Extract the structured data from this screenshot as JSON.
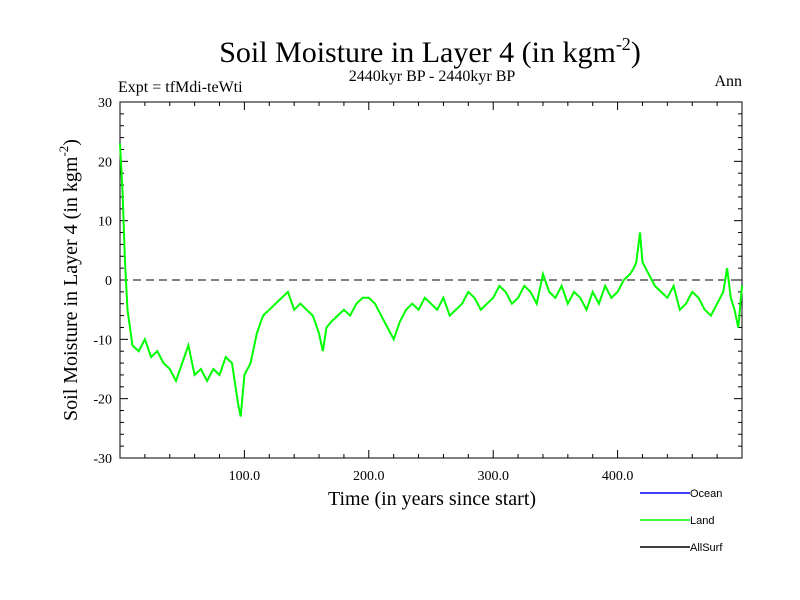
{
  "chart_data": {
    "type": "line",
    "title": "Soil Moisture in Layer 4 (in kgm",
    "title_sup": "-2",
    "title_close": ")",
    "subtitle_left": "Expt = tfMdi-teWti",
    "subtitle_center": "2440kyr BP - 2440kyr BP",
    "subtitle_right": "Ann",
    "xlabel": "Time (in years since start)",
    "ylabel": "Soil Moisture in Layer 4 (in kgm",
    "ylabel_sup": "-2",
    "ylabel_close": ")",
    "xlim": [
      0,
      500
    ],
    "ylim": [
      -30,
      30
    ],
    "xticks": [
      100,
      200,
      300,
      400
    ],
    "xtick_labels": [
      "100.0",
      "200.0",
      "300.0",
      "400.0"
    ],
    "yticks": [
      -30,
      -20,
      -10,
      0,
      10,
      20,
      30
    ],
    "ytick_labels": [
      "-30",
      "-20",
      "-10",
      "0",
      "10",
      "20",
      "30"
    ],
    "reference_line": 0,
    "legend": [
      {
        "name": "Ocean",
        "color": "#0000ff"
      },
      {
        "name": "Land",
        "color": "#00ff00"
      },
      {
        "name": "AllSurf",
        "color": "#000000"
      }
    ],
    "series": [
      {
        "name": "Land",
        "color": "#00ff00",
        "x": [
          0,
          2,
          4,
          6,
          8,
          10,
          15,
          20,
          25,
          30,
          35,
          40,
          45,
          50,
          55,
          60,
          65,
          70,
          75,
          80,
          85,
          90,
          95,
          97,
          100,
          105,
          110,
          115,
          120,
          125,
          130,
          135,
          140,
          145,
          150,
          155,
          160,
          163,
          166,
          170,
          175,
          180,
          185,
          190,
          195,
          200,
          205,
          210,
          215,
          220,
          225,
          230,
          235,
          240,
          245,
          250,
          255,
          260,
          265,
          270,
          275,
          280,
          285,
          290,
          295,
          300,
          305,
          310,
          315,
          320,
          325,
          330,
          335,
          340,
          345,
          350,
          355,
          360,
          365,
          370,
          375,
          380,
          385,
          390,
          395,
          400,
          405,
          410,
          413,
          415,
          418,
          420,
          425,
          430,
          435,
          440,
          445,
          450,
          455,
          460,
          465,
          470,
          475,
          480,
          485,
          488,
          491,
          494,
          497,
          500
        ],
        "y": [
          23,
          15,
          3,
          -5,
          -8,
          -11,
          -12,
          -10,
          -13,
          -12,
          -14,
          -15,
          -17,
          -14,
          -11,
          -16,
          -15,
          -17,
          -15,
          -16,
          -13,
          -14,
          -21,
          -23,
          -16,
          -14,
          -9,
          -6,
          -5,
          -4,
          -3,
          -2,
          -5,
          -4,
          -5,
          -6,
          -9,
          -12,
          -8,
          -7,
          -6,
          -5,
          -6,
          -4,
          -3,
          -3,
          -4,
          -6,
          -8,
          -10,
          -7,
          -5,
          -4,
          -5,
          -3,
          -4,
          -5,
          -3,
          -6,
          -5,
          -4,
          -2,
          -3,
          -5,
          -4,
          -3,
          -1,
          -2,
          -4,
          -3,
          -1,
          -2,
          -4,
          1,
          -2,
          -3,
          -1,
          -4,
          -2,
          -3,
          -5,
          -2,
          -4,
          -1,
          -3,
          -2,
          0,
          1,
          2,
          3,
          8,
          3,
          1,
          -1,
          -2,
          -3,
          -1,
          -5,
          -4,
          -2,
          -3,
          -5,
          -6,
          -4,
          -2,
          2,
          -3,
          -5,
          -8,
          -1
        ]
      }
    ]
  }
}
